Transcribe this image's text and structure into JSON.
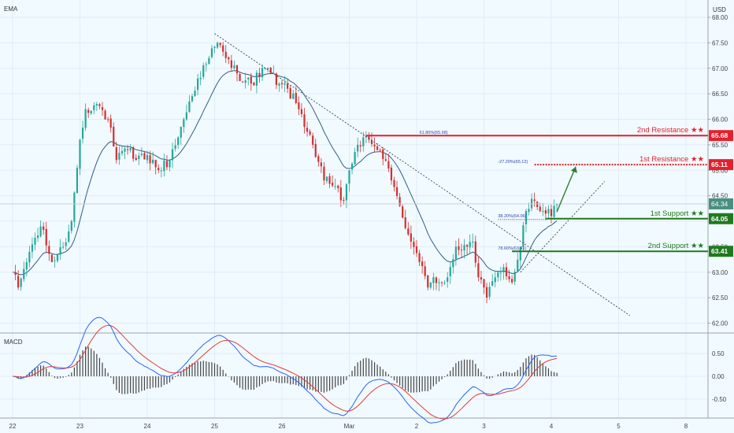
{
  "header": {
    "indicator_label": "EMA",
    "currency": "USD"
  },
  "macd_label": "MACD",
  "colors": {
    "background": "#f1faff",
    "up": "#26a69a",
    "down": "#d32f2f",
    "ema": "#2f5d86",
    "resistance": "#e4202d",
    "support": "#1f7a1f",
    "trend": "#445566",
    "fib": "#3344aa",
    "macd_line": "#2962ff",
    "signal_line": "#e53935",
    "histogram": "#444444",
    "arrow": "#2e7d32",
    "last_price": "#4a9080"
  },
  "chart_data": {
    "type": "candlestick",
    "ylim": [
      61.85,
      68.15
    ],
    "y_ticks": [
      "68.00",
      "67.50",
      "67.00",
      "66.50",
      "66.00",
      "65.50",
      "65.00",
      "64.50",
      "64.00",
      "63.50",
      "63.00",
      "62.50",
      "62.00"
    ],
    "x_ticks": [
      {
        "label": "22",
        "t": 0
      },
      {
        "label": "23",
        "t": 24
      },
      {
        "label": "24",
        "t": 48
      },
      {
        "label": "25",
        "t": 72
      },
      {
        "label": "26",
        "t": 96
      },
      {
        "label": "Mar",
        "t": 120
      },
      {
        "label": "2",
        "t": 144
      },
      {
        "label": "3",
        "t": 168
      },
      {
        "label": "4",
        "t": 192
      },
      {
        "label": "5",
        "t": 216
      },
      {
        "label": "8",
        "t": 240
      }
    ],
    "t_range": [
      -2,
      248
    ],
    "close_anchors": [
      [
        0,
        63.0
      ],
      [
        2,
        62.7
      ],
      [
        6,
        63.4
      ],
      [
        10,
        63.9
      ],
      [
        14,
        63.2
      ],
      [
        18,
        63.5
      ],
      [
        21,
        64.0
      ],
      [
        24,
        65.6
      ],
      [
        26,
        66.2
      ],
      [
        30,
        66.3
      ],
      [
        34,
        66.0
      ],
      [
        37,
        65.2
      ],
      [
        41,
        65.4
      ],
      [
        44,
        65.2
      ],
      [
        48,
        65.3
      ],
      [
        52,
        65.0
      ],
      [
        56,
        65.2
      ],
      [
        61,
        66.0
      ],
      [
        66,
        66.8
      ],
      [
        70,
        67.2
      ],
      [
        73,
        67.5
      ],
      [
        76,
        67.2
      ],
      [
        80,
        66.9
      ],
      [
        85,
        66.7
      ],
      [
        90,
        67.0
      ],
      [
        95,
        66.7
      ],
      [
        98,
        66.6
      ],
      [
        103,
        66.1
      ],
      [
        107,
        65.5
      ],
      [
        111,
        64.8
      ],
      [
        114,
        64.7
      ],
      [
        118,
        64.4
      ],
      [
        120,
        65.0
      ],
      [
        123,
        65.5
      ],
      [
        127,
        65.6
      ],
      [
        131,
        65.4
      ],
      [
        135,
        64.8
      ],
      [
        138,
        64.3
      ],
      [
        142,
        63.6
      ],
      [
        145,
        63.2
      ],
      [
        148,
        62.7
      ],
      [
        150,
        62.9
      ],
      [
        152,
        62.8
      ],
      [
        155,
        62.9
      ],
      [
        158,
        63.5
      ],
      [
        162,
        63.5
      ],
      [
        164,
        63.6
      ],
      [
        166,
        62.9
      ],
      [
        169,
        62.5
      ],
      [
        172,
        62.9
      ],
      [
        175,
        63.1
      ],
      [
        178,
        62.8
      ],
      [
        181,
        63.5
      ],
      [
        183,
        64.2
      ],
      [
        186,
        64.4
      ],
      [
        189,
        64.2
      ],
      [
        192,
        64.1
      ],
      [
        194,
        64.34
      ]
    ],
    "ema_span": 16,
    "macd_ylim": [
      -0.75,
      0.8
    ],
    "macd_ticks": [
      "0.50",
      "0.00",
      "-0.50"
    ],
    "trendline": [
      [
        72,
        67.68
      ],
      [
        220,
        62.15
      ]
    ],
    "trendline_up": [
      [
        181,
        63.0
      ],
      [
        211,
        64.78
      ]
    ],
    "projection_arrow": {
      "from": [
        194,
        64.18
      ],
      "to": [
        197,
        65.1
      ]
    },
    "last_price": {
      "value": 64.34,
      "label": "64.34"
    },
    "levels": [
      {
        "name": "2nd Resistance",
        "label": "2nd Resistance ★★",
        "price": 65.68,
        "tag": "65.68",
        "kind": "resistance",
        "style": "solid",
        "start_t": 126,
        "fib": "61.80%(65.68)",
        "fib_t": 145
      },
      {
        "name": "1st Resistance",
        "label": "1st Resistance ★★",
        "price": 65.11,
        "tag": "65.11",
        "kind": "resistance",
        "style": "dotted",
        "start_t": 186,
        "fib": "-27.20%(65.12)",
        "fib_t": 173
      },
      {
        "name": "1st Support",
        "label": "1st Support ★★",
        "price": 64.05,
        "tag": "64.05",
        "kind": "support",
        "style": "solid",
        "start_t": 190,
        "fib": "38.20%(64.06)",
        "fib_t": 173
      },
      {
        "name": "2nd Support",
        "label": "2nd Support ★★",
        "price": 63.41,
        "tag": "63.41",
        "kind": "support",
        "style": "solid",
        "start_t": 178,
        "fib": "78.60%(63.41)",
        "fib_t": 173
      }
    ]
  }
}
